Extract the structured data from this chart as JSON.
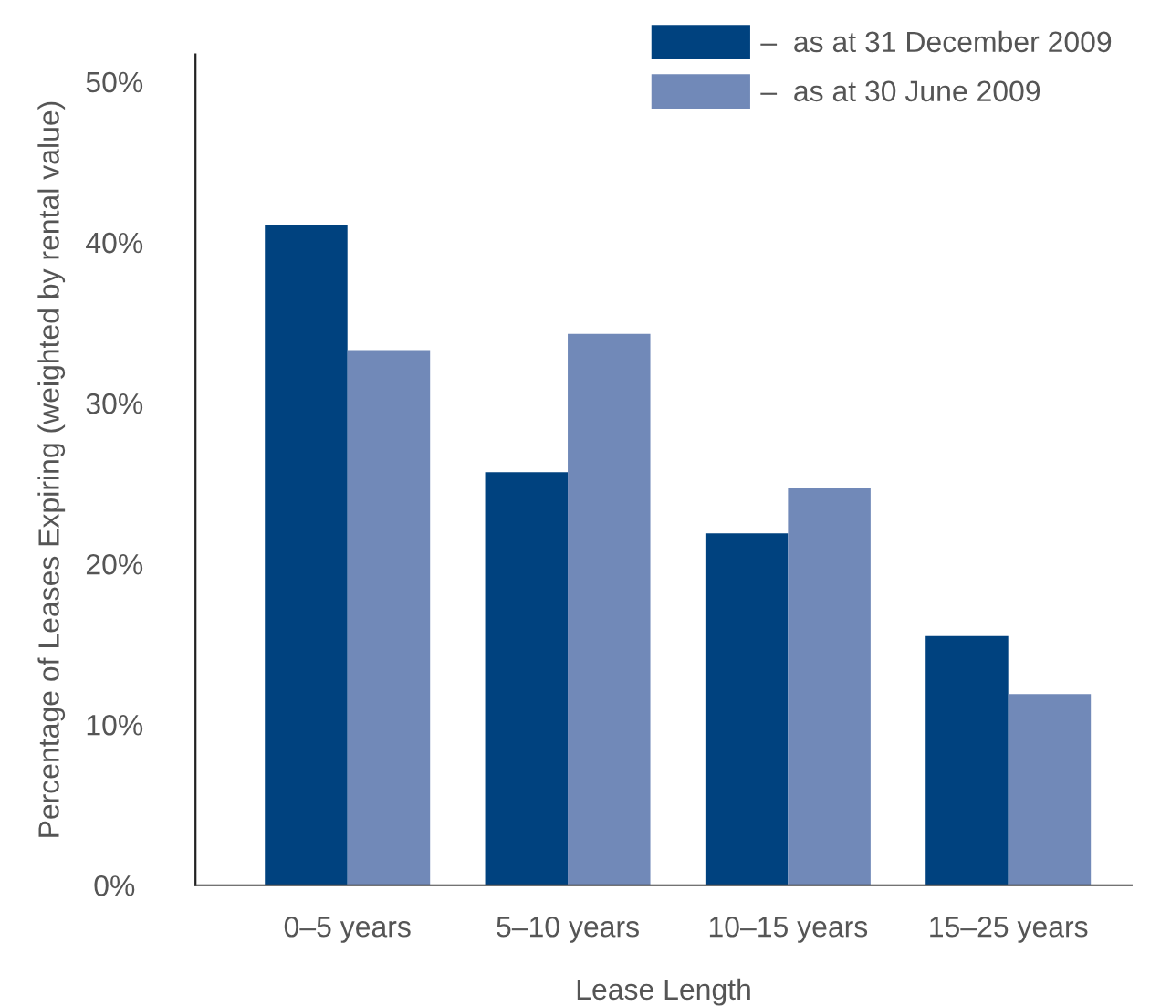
{
  "chart_data": {
    "type": "bar",
    "categories": [
      "0–5 years",
      "5–10 years",
      "10–15 years",
      "15–25 years"
    ],
    "series": [
      {
        "name": "–  as at 31 December 2009",
        "color": "#00427f",
        "values": [
          41.1,
          25.7,
          21.9,
          15.5
        ]
      },
      {
        "name": "–  as at 30 June 2009",
        "color": "#7189b8",
        "values": [
          33.3,
          34.3,
          24.7,
          11.9
        ]
      }
    ],
    "xlabel": "Lease Length",
    "ylabel": "Percentage of Leases Expiring (weighted by rental value)",
    "ylim": [
      0,
      51.7
    ],
    "yticks": [
      {
        "value": 0,
        "label": "0%"
      },
      {
        "value": 10,
        "label": "10%"
      },
      {
        "value": 20,
        "label": "20%"
      },
      {
        "value": 30,
        "label": "30%"
      },
      {
        "value": 40,
        "label": "40%"
      },
      {
        "value": 50,
        "label": "50%"
      }
    ],
    "grid": false,
    "legend": "top right"
  }
}
